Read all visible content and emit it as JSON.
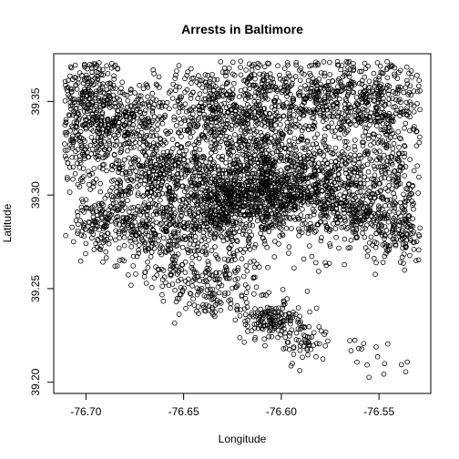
{
  "chart_data": {
    "type": "scatter",
    "title": "Arrests in Baltimore",
    "xlabel": "Longitude",
    "ylabel": "Latitude",
    "xlim": [
      -76.7165,
      -76.5235
    ],
    "ylim": [
      39.194,
      39.3755
    ],
    "xticks": [
      -76.7,
      -76.65,
      -76.6,
      -76.55
    ],
    "xtick_labels": [
      "-76.70",
      "-76.65",
      "-76.60",
      "-76.55"
    ],
    "yticks": [
      39.2,
      39.25,
      39.3,
      39.35
    ],
    "ytick_labels": [
      "39.20",
      "39.25",
      "39.30",
      "39.35"
    ],
    "grid": false,
    "marker": "open-circle",
    "clusters": [
      {
        "cx": -76.7,
        "cy": 39.355,
        "sx": 0.01,
        "sy": 0.01,
        "n": 220
      },
      {
        "cx": -76.68,
        "cy": 39.34,
        "sx": 0.012,
        "sy": 0.008,
        "n": 260
      },
      {
        "cx": -76.7,
        "cy": 39.325,
        "sx": 0.01,
        "sy": 0.01,
        "n": 160
      },
      {
        "cx": -76.64,
        "cy": 39.345,
        "sx": 0.012,
        "sy": 0.012,
        "n": 200
      },
      {
        "cx": -76.615,
        "cy": 39.34,
        "sx": 0.012,
        "sy": 0.018,
        "n": 380
      },
      {
        "cx": -76.59,
        "cy": 39.355,
        "sx": 0.012,
        "sy": 0.012,
        "n": 200
      },
      {
        "cx": -76.565,
        "cy": 39.35,
        "sx": 0.012,
        "sy": 0.014,
        "n": 260
      },
      {
        "cx": -76.545,
        "cy": 39.35,
        "sx": 0.01,
        "sy": 0.014,
        "n": 200
      },
      {
        "cx": -76.66,
        "cy": 39.31,
        "sx": 0.014,
        "sy": 0.01,
        "n": 320
      },
      {
        "cx": -76.63,
        "cy": 39.295,
        "sx": 0.012,
        "sy": 0.012,
        "n": 500
      },
      {
        "cx": -76.605,
        "cy": 39.3,
        "sx": 0.01,
        "sy": 0.01,
        "n": 400
      },
      {
        "cx": -76.58,
        "cy": 39.305,
        "sx": 0.012,
        "sy": 0.012,
        "n": 340
      },
      {
        "cx": -76.56,
        "cy": 39.29,
        "sx": 0.012,
        "sy": 0.01,
        "n": 220
      },
      {
        "cx": -76.545,
        "cy": 39.31,
        "sx": 0.01,
        "sy": 0.012,
        "n": 150
      },
      {
        "cx": -76.69,
        "cy": 39.285,
        "sx": 0.01,
        "sy": 0.008,
        "n": 180
      },
      {
        "cx": -76.66,
        "cy": 39.28,
        "sx": 0.012,
        "sy": 0.008,
        "n": 200
      },
      {
        "cx": -76.54,
        "cy": 39.28,
        "sx": 0.008,
        "sy": 0.008,
        "n": 120
      },
      {
        "cx": -76.65,
        "cy": 39.26,
        "sx": 0.012,
        "sy": 0.006,
        "n": 80
      },
      {
        "cx": -76.625,
        "cy": 39.255,
        "sx": 0.01,
        "sy": 0.008,
        "n": 90
      },
      {
        "cx": -76.64,
        "cy": 39.245,
        "sx": 0.008,
        "sy": 0.006,
        "n": 60
      },
      {
        "cx": -76.605,
        "cy": 39.233,
        "sx": 0.008,
        "sy": 0.005,
        "n": 140
      },
      {
        "cx": -76.59,
        "cy": 39.223,
        "sx": 0.006,
        "sy": 0.006,
        "n": 60
      },
      {
        "cx": -76.56,
        "cy": 39.215,
        "sx": 0.01,
        "sy": 0.008,
        "n": 12
      },
      {
        "cx": -76.54,
        "cy": 39.208,
        "sx": 0.004,
        "sy": 0.003,
        "n": 5
      },
      {
        "cx": -76.62,
        "cy": 39.32,
        "sx": 0.05,
        "sy": 0.025,
        "n": 500
      }
    ]
  }
}
